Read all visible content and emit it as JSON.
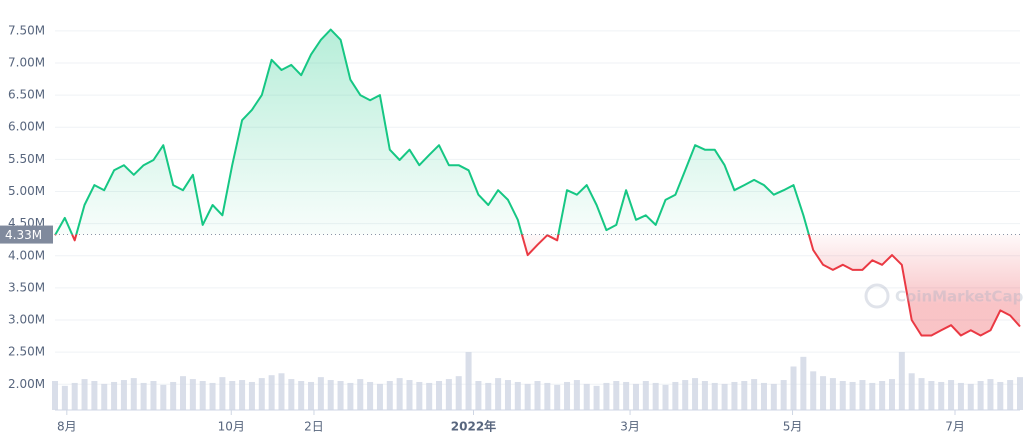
{
  "chart_data": {
    "type": "line",
    "watermark": "CoinMarketCap",
    "series": [
      {
        "name": "price",
        "color": "#16c784",
        "below_color": "#ea3943",
        "values": [
          4.32,
          4.59,
          4.24,
          4.79,
          5.1,
          5.02,
          5.33,
          5.41,
          5.26,
          5.41,
          5.49,
          5.72,
          5.1,
          5.02,
          5.26,
          4.48,
          4.79,
          4.63,
          5.41,
          6.11,
          6.27,
          6.5,
          7.05,
          6.89,
          6.97,
          6.81,
          7.13,
          7.36,
          7.52,
          7.36,
          6.74,
          6.5,
          6.42,
          6.5,
          5.65,
          5.49,
          5.65,
          5.41,
          5.57,
          5.72,
          5.41,
          5.41,
          5.33,
          4.95,
          4.79,
          5.02,
          4.87,
          4.56,
          4.01,
          4.17,
          4.32,
          4.24,
          5.02,
          4.95,
          5.1,
          4.79,
          4.4,
          4.48,
          5.02,
          4.56,
          4.63,
          4.48,
          4.87,
          4.95,
          5.33,
          5.72,
          5.65,
          5.65,
          5.41,
          5.02,
          5.1,
          5.18,
          5.1,
          4.95,
          5.02,
          5.1,
          4.63,
          4.09,
          3.86,
          3.78,
          3.86,
          3.78,
          3.78,
          3.93,
          3.86,
          4.01,
          3.86,
          3.0,
          2.76,
          2.76,
          2.84,
          2.92,
          2.76,
          2.84,
          2.76,
          2.84,
          3.15,
          3.07,
          2.9
        ]
      }
    ],
    "volume": {
      "color": "#cfd6e4",
      "values": [
        30,
        25,
        28,
        32,
        30,
        27,
        29,
        31,
        33,
        28,
        30,
        26,
        29,
        35,
        32,
        30,
        28,
        34,
        30,
        31,
        29,
        33,
        36,
        38,
        32,
        30,
        29,
        34,
        31,
        30,
        28,
        32,
        29,
        27,
        30,
        33,
        31,
        29,
        28,
        30,
        32,
        35,
        60,
        30,
        28,
        33,
        31,
        29,
        27,
        30,
        28,
        26,
        29,
        31,
        27,
        25,
        28,
        30,
        29,
        27,
        30,
        28,
        26,
        29,
        31,
        33,
        30,
        28,
        27,
        29,
        30,
        32,
        28,
        27,
        31,
        45,
        55,
        40,
        35,
        33,
        30,
        29,
        31,
        28,
        30,
        32,
        60,
        38,
        33,
        30,
        29,
        31,
        28,
        27,
        30,
        32,
        29,
        31,
        34
      ]
    },
    "baseline": {
      "value": 4.33,
      "label": "4.33M"
    },
    "xlim": [
      0,
      98
    ],
    "xticks": [
      {
        "value": 1.2,
        "label": "8月"
      },
      {
        "value": 17.9,
        "label": "10月"
      },
      {
        "value": 26.3,
        "label": "2日"
      },
      {
        "value": 42.5,
        "label": "2022年"
      },
      {
        "value": 58.4,
        "label": "3月"
      },
      {
        "value": 74.9,
        "label": "5月"
      },
      {
        "value": 91.4,
        "label": "7月"
      }
    ],
    "ylim": [
      1.6,
      7.98
    ],
    "yticks": [
      {
        "value": 2.0,
        "label": "2.00M"
      },
      {
        "value": 2.5,
        "label": "2.50M"
      },
      {
        "value": 3.0,
        "label": "3.00M"
      },
      {
        "value": 3.5,
        "label": "3.50M"
      },
      {
        "value": 4.0,
        "label": "4.00M"
      },
      {
        "value": 4.5,
        "label": "4.50M"
      },
      {
        "value": 5.0,
        "label": "5.00M"
      },
      {
        "value": 5.5,
        "label": "5.50M"
      },
      {
        "value": 6.0,
        "label": "6.00M"
      },
      {
        "value": 6.5,
        "label": "6.50M"
      },
      {
        "value": 7.0,
        "label": "7.00M"
      },
      {
        "value": 7.5,
        "label": "7.50M"
      }
    ],
    "grid": true
  }
}
